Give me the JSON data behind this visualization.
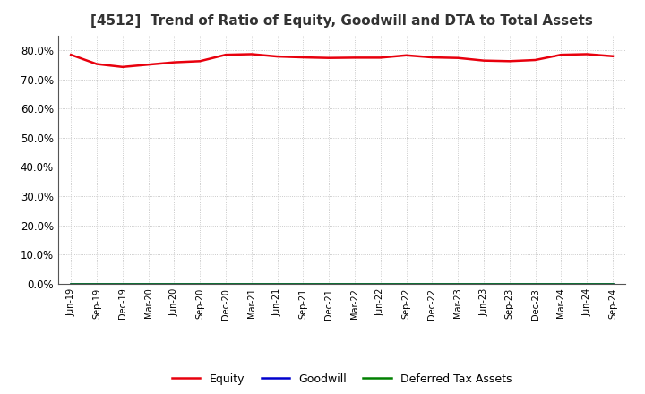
{
  "title": "[4512]  Trend of Ratio of Equity, Goodwill and DTA to Total Assets",
  "x_labels": [
    "Jun-19",
    "Sep-19",
    "Dec-19",
    "Mar-20",
    "Jun-20",
    "Sep-20",
    "Dec-20",
    "Mar-21",
    "Jun-21",
    "Sep-21",
    "Dec-21",
    "Mar-22",
    "Jun-22",
    "Sep-22",
    "Dec-22",
    "Mar-23",
    "Jun-23",
    "Sep-23",
    "Dec-23",
    "Mar-24",
    "Jun-24",
    "Sep-24"
  ],
  "equity": [
    0.784,
    0.752,
    0.742,
    0.75,
    0.758,
    0.762,
    0.784,
    0.786,
    0.778,
    0.775,
    0.773,
    0.774,
    0.774,
    0.782,
    0.775,
    0.773,
    0.764,
    0.762,
    0.766,
    0.784,
    0.786,
    0.779
  ],
  "goodwill": [
    0.0,
    0.0,
    0.0,
    0.0,
    0.0,
    0.0,
    0.0,
    0.0,
    0.0,
    0.0,
    0.0,
    0.0,
    0.0,
    0.0,
    0.0,
    0.0,
    0.0,
    0.0,
    0.0,
    0.0,
    0.0,
    0.0
  ],
  "dta": [
    0.0,
    0.0,
    0.0,
    0.0,
    0.0,
    0.0,
    0.0,
    0.0,
    0.0,
    0.0,
    0.0,
    0.0,
    0.0,
    0.0,
    0.0,
    0.0,
    0.0,
    0.0,
    0.0,
    0.0,
    0.0,
    0.0
  ],
  "equity_color": "#e8000d",
  "goodwill_color": "#0000cd",
  "dta_color": "#008000",
  "ylim": [
    0.0,
    0.85
  ],
  "yticks": [
    0.0,
    0.1,
    0.2,
    0.3,
    0.4,
    0.5,
    0.6,
    0.7,
    0.8
  ],
  "background_color": "#ffffff",
  "plot_bg_color": "#ffffff",
  "title_fontsize": 11,
  "legend_labels": [
    "Equity",
    "Goodwill",
    "Deferred Tax Assets"
  ]
}
